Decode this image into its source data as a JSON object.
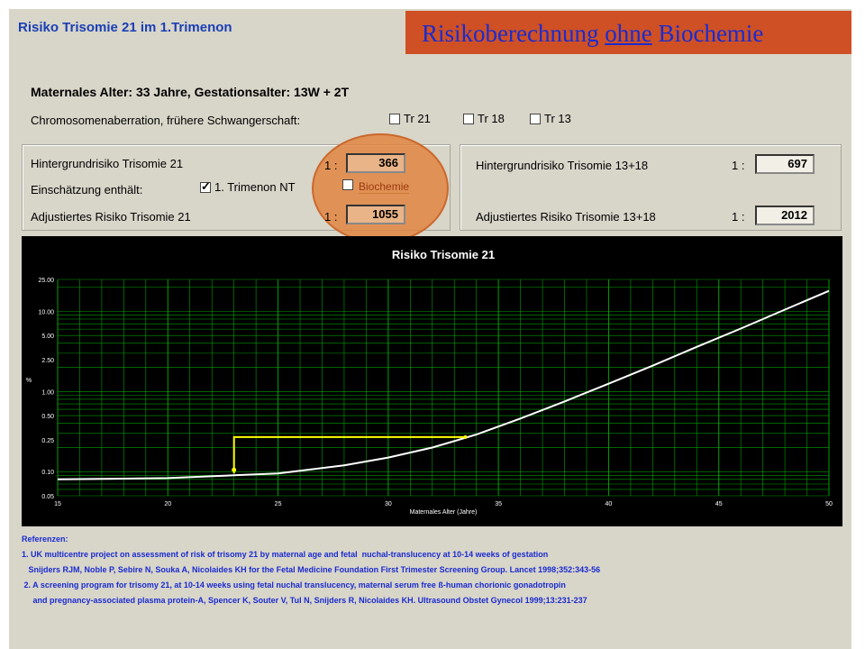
{
  "app": {
    "title": "Risiko Trisomie 21 im 1.Trimenon"
  },
  "banner": {
    "pre": "Risikoberechnung ",
    "underlined": "ohne",
    "post": " Biochemie",
    "bg_color": "#cf5024",
    "text_color": "#1a2bd0"
  },
  "patient": {
    "info": "Maternales Alter: 33 Jahre,  Gestationsalter: 13W + 2T"
  },
  "chromosome": {
    "label": "Chromosomenaberration, frühere Schwangerschaft:",
    "options": [
      {
        "label": "Tr 21",
        "checked": false
      },
      {
        "label": "Tr 18",
        "checked": false
      },
      {
        "label": "Tr 13",
        "checked": false
      }
    ]
  },
  "panel_t21": {
    "background_label": "Hintergrundrisiko Trisomie 21",
    "estimate_label": "Einschätzung enthält:",
    "nt_label": "1. Trimenon NT",
    "nt_checked": true,
    "bio_label": "Biochemie",
    "bio_checked": false,
    "adjusted_label": "Adjustiertes Risiko Trisomie 21",
    "ratio_prefix": "1 :",
    "background_value": "366",
    "adjusted_value": "1055"
  },
  "panel_t1318": {
    "background_label": "Hintergrundrisiko Trisomie 13+18",
    "adjusted_label": "Adjustiertes Risiko Trisomie 13+18",
    "ratio_prefix": "1 :",
    "background_value": "697",
    "adjusted_value": "2012"
  },
  "chart_data": {
    "type": "line",
    "title": "Risiko Trisomie 21",
    "xlabel": "Maternales Alter (Jahre)",
    "ylabel": "%",
    "xlim": [
      15,
      50
    ],
    "ylim": [
      0.05,
      25
    ],
    "y_scale": "log",
    "grid": true,
    "x_ticks": [
      "15",
      "20",
      "25",
      "30",
      "35",
      "40",
      "45",
      "50"
    ],
    "y_ticks": [
      "25.00",
      "10.00",
      "5.00",
      "2.50",
      "1.00",
      "0.50",
      "0.25",
      "0.10",
      "0.05"
    ],
    "series": [
      {
        "x": [
          15,
          20,
          23,
          25,
          28,
          30,
          32,
          34,
          36,
          38,
          40,
          42,
          44,
          46,
          48,
          50
        ],
        "values": [
          0.08,
          0.083,
          0.09,
          0.095,
          0.12,
          0.15,
          0.2,
          0.29,
          0.46,
          0.75,
          1.25,
          2.1,
          3.6,
          6.1,
          10.5,
          18.0
        ]
      }
    ],
    "marker": {
      "x_from": 23,
      "x_to": 33.5,
      "y_from": 0.095,
      "y_to": 0.27
    },
    "colors": {
      "background": "#000000",
      "grid": "#00a000",
      "curve": "#ffffff",
      "marker": "#ffff00",
      "title": "#ffffff",
      "ticks": "#ffffff"
    }
  },
  "references": {
    "heading": "Referenzen:",
    "lines": [
      "1. UK multicentre project on assessment of risk of trisomy 21 by maternal age and fetal  nuchal-translucency at 10-14 weeks of gestation",
      "   Snijders RJM, Noble P, Sebire N, Souka A, Nicolaides KH for the Fetal Medicine Foundation First Trimester Screening Group. Lancet 1998;352:343-56",
      " 2. A screening program for trisomy 21, at 10-14 weeks using fetal nuchal translucency, maternal serum free ß-human chorionic gonadotropin",
      "     and pregnancy-associated plasma protein-A, Spencer K, Souter V, Tul N, Snijders R, Nicolaides KH. Ultrasound Obstet Gynecol 1999;13:231-237"
    ]
  }
}
